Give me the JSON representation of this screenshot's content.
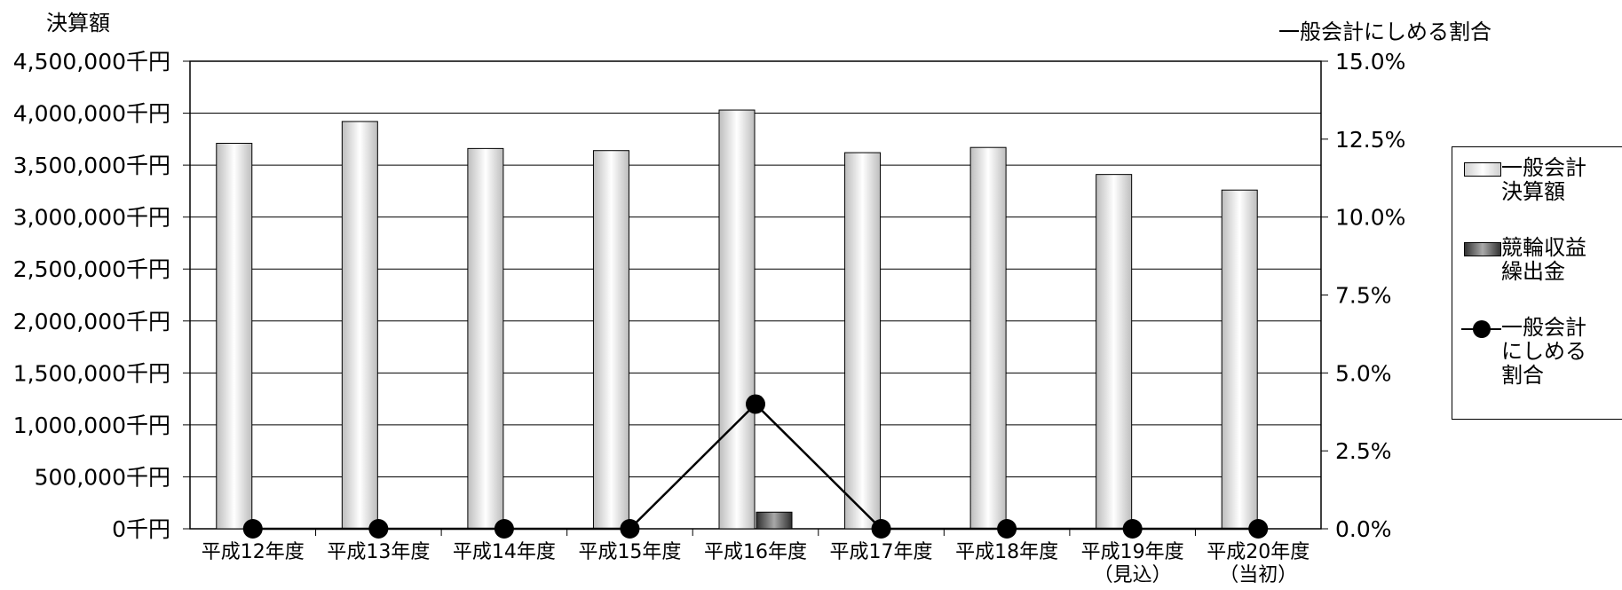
{
  "chart_data": {
    "type": "bar",
    "y_left_title": "決算額",
    "y_right_title": "一般会計にしめる割合",
    "categories": [
      [
        "平成12年度"
      ],
      [
        "平成13年度"
      ],
      [
        "平成14年度"
      ],
      [
        "平成15年度"
      ],
      [
        "平成16年度"
      ],
      [
        "平成17年度"
      ],
      [
        "平成18年度"
      ],
      [
        "平成19年度",
        "（見込）"
      ],
      [
        "平成20年度",
        "（当初）"
      ]
    ],
    "y_left_ticks": [
      "0千円",
      "500,000千円",
      "1,000,000千円",
      "1,500,000千円",
      "2,000,000千円",
      "2,500,000千円",
      "3,000,000千円",
      "3,500,000千円",
      "4,000,000千円",
      "4,500,000千円"
    ],
    "y_right_ticks": [
      "0.0%",
      "2.5%",
      "5.0%",
      "7.5%",
      "10.0%",
      "12.5%",
      "15.0%"
    ],
    "y_left_range": [
      0,
      4500000
    ],
    "y_right_range": [
      0,
      15
    ],
    "grid": true,
    "legend_position": "right",
    "series": [
      {
        "name": "一般会計\n決算額",
        "kind": "bar",
        "axis": "left",
        "color": "#d9d9d9",
        "values": [
          3710000,
          3920000,
          3660000,
          3640000,
          4030000,
          3620000,
          3670000,
          3410000,
          3260000
        ]
      },
      {
        "name": "競輪収益\n繰出金",
        "kind": "bar",
        "axis": "left",
        "color": "#555555",
        "values": [
          0,
          0,
          0,
          0,
          160000,
          0,
          0,
          0,
          0
        ]
      },
      {
        "name": "一般会計\nにしめる\n割合",
        "kind": "line",
        "axis": "right",
        "color": "#000000",
        "values": [
          0.0,
          0.0,
          0.0,
          0.0,
          4.0,
          0.0,
          0.0,
          0.0,
          0.0
        ]
      }
    ]
  }
}
